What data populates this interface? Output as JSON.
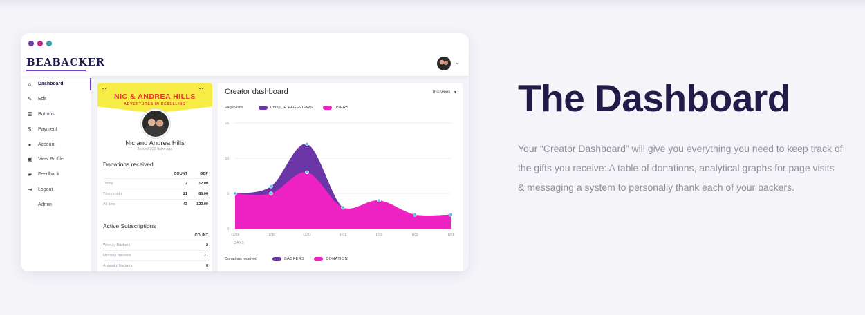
{
  "window": {
    "dot_colors": [
      "#6b3fa8",
      "#c0258f",
      "#3c9ba4"
    ],
    "brand": "BEABACKER",
    "chevron": "⌄"
  },
  "sidebar": {
    "items": [
      {
        "label": "Dashboard",
        "icon": "home-icon",
        "active": true
      },
      {
        "label": "Edit",
        "icon": "pencil-icon"
      },
      {
        "label": "Buttons",
        "icon": "list-icon"
      },
      {
        "label": "Payment",
        "icon": "dollar-icon"
      },
      {
        "label": "Account",
        "icon": "user-icon"
      },
      {
        "label": "View Profile",
        "icon": "id-card-icon"
      },
      {
        "label": "Feedback",
        "icon": "message-icon"
      },
      {
        "label": "Logout",
        "icon": "logout-icon"
      },
      {
        "label": "Admin",
        "icon": ""
      }
    ]
  },
  "profile": {
    "banner_title": "NIC & ANDREA HILLS",
    "banner_subtitle": "ADVENTURES IN RESELLING",
    "name": "Nic and Andrea Hills",
    "joined": "Joined 100 days ago",
    "donations": {
      "title": "Donations received",
      "headers": [
        "COUNT",
        "GBP"
      ],
      "rows": [
        {
          "label": "Today",
          "count": "2",
          "gbp": "12.00"
        },
        {
          "label": "This month",
          "count": "21",
          "gbp": "85.00"
        },
        {
          "label": "All time",
          "count": "43",
          "gbp": "122.00"
        }
      ]
    },
    "subscriptions": {
      "title": "Active Subscriptions",
      "headers": [
        "COUNT"
      ],
      "rows": [
        {
          "label": "Weekly Backers",
          "count": "2"
        },
        {
          "label": "Monthly Backers",
          "count": "11"
        },
        {
          "label": "Annually Backers",
          "count": "0"
        }
      ]
    }
  },
  "creator": {
    "title": "Creator dashboard",
    "period": "This week",
    "page_visits_label": "Page visits",
    "donations_label": "Donations received",
    "legend_visits": [
      {
        "name": "UNIQUE PAGEVIEWS",
        "color": "#6a35a6"
      },
      {
        "name": "USERS",
        "color": "#ee22c2"
      }
    ],
    "legend_donations": [
      {
        "name": "BACKERS",
        "color": "#6a35a6"
      },
      {
        "name": "DONATION",
        "color": "#ee22c2"
      }
    ]
  },
  "chart_data": {
    "type": "area",
    "x": [
      "12/29",
      "12/30",
      "12/31",
      "1/01",
      "1/02",
      "1/03",
      "1/04"
    ],
    "xlabel": "DAYS",
    "ylabel": "",
    "ylim": [
      0,
      15
    ],
    "yticks": [
      0,
      5,
      10,
      15
    ],
    "grid": true,
    "series": [
      {
        "name": "UNIQUE PAGEVIEWS",
        "values": [
          5,
          6,
          12,
          3,
          4,
          2,
          2
        ],
        "color": "#6a35a6"
      },
      {
        "name": "USERS",
        "values": [
          5,
          5,
          8,
          3,
          4,
          2,
          2
        ],
        "color": "#ee22c2"
      }
    ]
  },
  "hero": {
    "heading": "The Dashboard",
    "description": "Your “Creator Dashboard” will give you everything you need to keep track of the gifts you receive: A table of donations, analytical graphs for page visits & messaging a system to personally thank each of your backers."
  }
}
